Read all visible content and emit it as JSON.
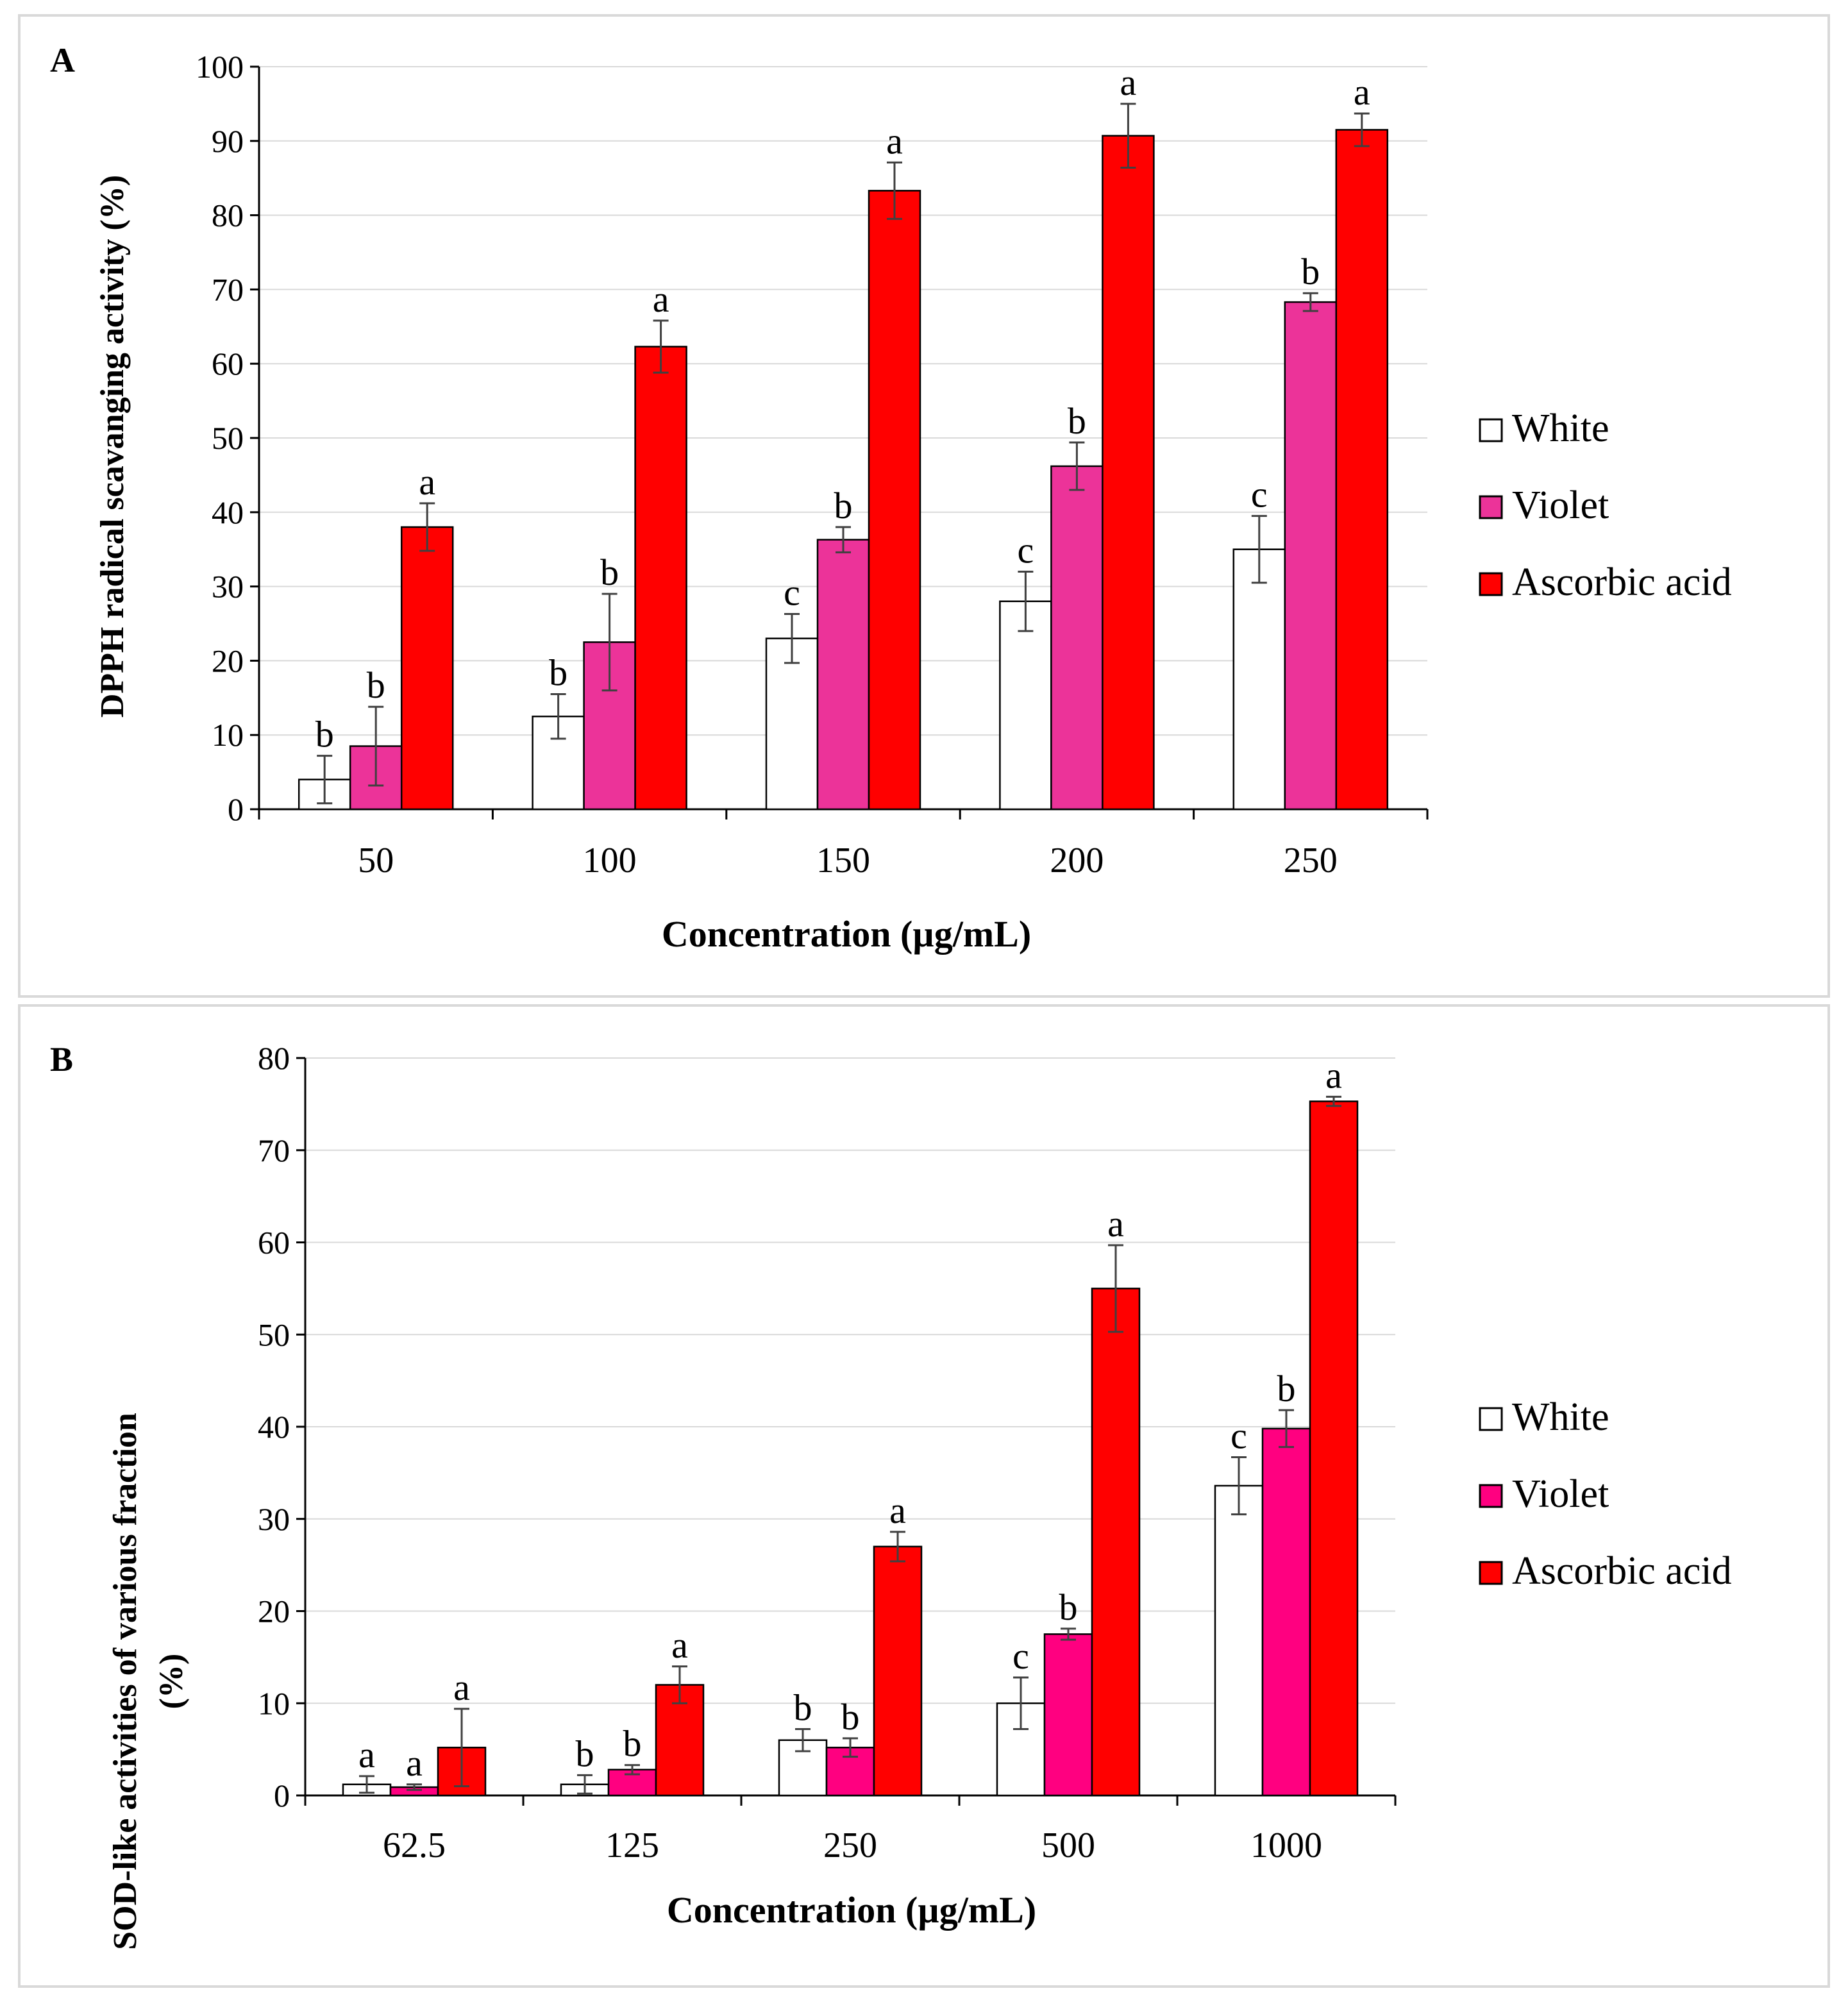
{
  "chart_data": [
    {
      "type": "bar",
      "panel_label": "A",
      "ylabel": "DPPH radical scavanging activity (%)",
      "xlabel": "Concentration (µg/mL)",
      "ylim": [
        0,
        100
      ],
      "yticks": [
        0,
        10,
        20,
        30,
        40,
        50,
        60,
        70,
        80,
        90,
        100
      ],
      "categories": [
        "50",
        "100",
        "150",
        "200",
        "250"
      ],
      "grid": true,
      "legend_position": "right",
      "series": [
        {
          "name": "White",
          "color": "#ffffff",
          "values": [
            4,
            12.5,
            23,
            28,
            35
          ],
          "errors": [
            3.2,
            3,
            3.3,
            4,
            4.5
          ],
          "letters": [
            "b",
            "b",
            "c",
            "c",
            "c"
          ]
        },
        {
          "name": "Violet",
          "color": "#ec3399",
          "values": [
            8.5,
            22.5,
            36.3,
            46.2,
            68.3
          ],
          "errors": [
            5.3,
            6.5,
            1.7,
            3.2,
            1.2
          ],
          "letters": [
            "b",
            "b",
            "b",
            "b",
            "b"
          ]
        },
        {
          "name": "Ascorbic acid",
          "color": "#ff0000",
          "values": [
            38,
            62.3,
            83.3,
            90.7,
            91.5
          ],
          "errors": [
            3.2,
            3.5,
            3.8,
            4.3,
            2.2
          ],
          "letters": [
            "a",
            "a",
            "a",
            "a",
            "a"
          ]
        }
      ]
    },
    {
      "type": "bar",
      "panel_label": "B",
      "ylabel_line1": "SOD-like activities of various fraction",
      "ylabel_line2": "(%)",
      "xlabel": "Concentration (µg/mL)",
      "ylim": [
        0,
        80
      ],
      "yticks": [
        0,
        10,
        20,
        30,
        40,
        50,
        60,
        70,
        80
      ],
      "categories": [
        "62.5",
        "125",
        "250",
        "500",
        "1000"
      ],
      "grid": true,
      "legend_position": "right",
      "series": [
        {
          "name": "White",
          "color": "#ffffff",
          "values": [
            1.2,
            1.2,
            6,
            10,
            33.6
          ],
          "errors": [
            0.9,
            1,
            1.2,
            2.8,
            3.1
          ],
          "letters": [
            "a",
            "b",
            "b",
            "c",
            "c"
          ]
        },
        {
          "name": "Violet",
          "color": "#ff0080",
          "values": [
            0.9,
            2.8,
            5.2,
            17.5,
            39.8
          ],
          "errors": [
            0.3,
            0.5,
            1,
            0.6,
            2
          ],
          "letters": [
            "a",
            "b",
            "b",
            "b",
            "b"
          ]
        },
        {
          "name": "Ascorbic acid",
          "color": "#ff0000",
          "values": [
            5.2,
            12,
            27,
            55,
            75.3
          ],
          "errors": [
            4.2,
            2,
            1.6,
            4.7,
            0.5
          ],
          "letters": [
            "a",
            "a",
            "a",
            "a",
            "a"
          ]
        }
      ]
    }
  ]
}
